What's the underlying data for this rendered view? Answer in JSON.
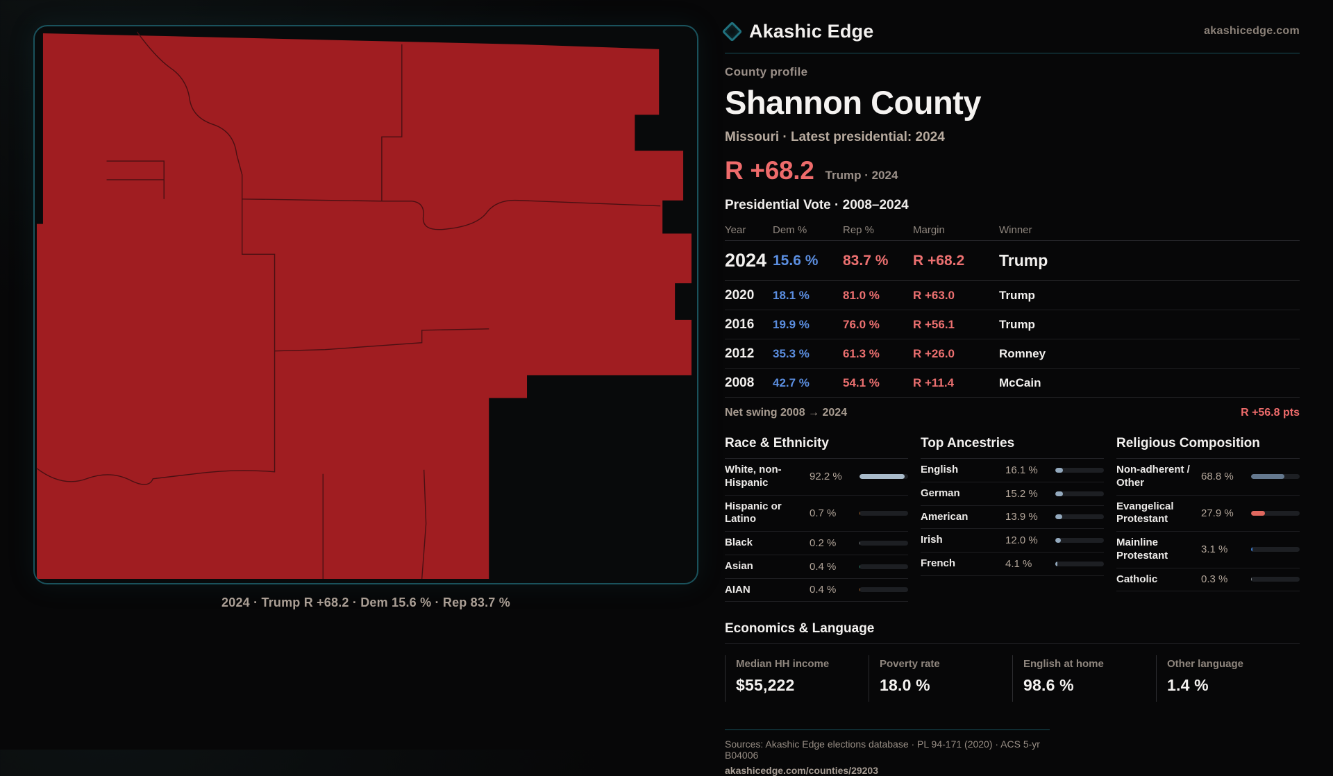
{
  "brand": {
    "name": "Akashic Edge",
    "domain": "akashicedge.com"
  },
  "profile": {
    "kicker": "County profile",
    "title": "Shannon County",
    "subtitle": "Missouri · Latest presidential: 2024",
    "headline_margin": "R +68.2",
    "headline_context": "Trump · 2024",
    "table_title": "Presidential Vote · 2008–2024"
  },
  "results_table": {
    "columns": [
      "Year",
      "Dem %",
      "Rep %",
      "Margin",
      "Winner"
    ],
    "rows": [
      {
        "year": "2024",
        "dem": "15.6 %",
        "rep": "83.7 %",
        "margin": "R +68.2",
        "winner": "Trump",
        "emphasis": true
      },
      {
        "year": "2020",
        "dem": "18.1 %",
        "rep": "81.0 %",
        "margin": "R +63.0",
        "winner": "Trump",
        "emphasis": false
      },
      {
        "year": "2016",
        "dem": "19.9 %",
        "rep": "76.0 %",
        "margin": "R +56.1",
        "winner": "Trump",
        "emphasis": false
      },
      {
        "year": "2012",
        "dem": "35.3 %",
        "rep": "61.3 %",
        "margin": "R +26.0",
        "winner": "Romney",
        "emphasis": false
      },
      {
        "year": "2008",
        "dem": "42.7 %",
        "rep": "54.1 %",
        "margin": "R +11.4",
        "winner": "McCain",
        "emphasis": false
      }
    ],
    "net_swing_label": "Net swing 2008 → 2024",
    "net_swing_value": "R +56.8 pts"
  },
  "demographics": {
    "race": {
      "title": "Race & Ethnicity",
      "rows": [
        {
          "label": "White, non-Hispanic",
          "value": "92.2 %",
          "pct": 92.2,
          "color": "#a9bbca"
        },
        {
          "label": "Hispanic or Latino",
          "value": "0.7 %",
          "pct": 0.7,
          "color": "#b06a30"
        },
        {
          "label": "Black",
          "value": "0.2 %",
          "pct": 0.2,
          "color": "#8a8f94"
        },
        {
          "label": "Asian",
          "value": "0.4 %",
          "pct": 0.4,
          "color": "#2f8f78"
        },
        {
          "label": "AIAN",
          "value": "0.4 %",
          "pct": 0.4,
          "color": "#b06a30"
        }
      ]
    },
    "ancestries": {
      "title": "Top Ancestries",
      "rows": [
        {
          "label": "English",
          "value": "16.1 %",
          "pct": 16.1,
          "color": "#93a9bd"
        },
        {
          "label": "German",
          "value": "15.2 %",
          "pct": 15.2,
          "color": "#93a9bd"
        },
        {
          "label": "American",
          "value": "13.9 %",
          "pct": 13.9,
          "color": "#93a9bd"
        },
        {
          "label": "Irish",
          "value": "12.0 %",
          "pct": 12.0,
          "color": "#93a9bd"
        },
        {
          "label": "French",
          "value": "4.1 %",
          "pct": 4.1,
          "color": "#93a9bd"
        }
      ]
    },
    "religion": {
      "title": "Religious Composition",
      "rows": [
        {
          "label": "Non-adherent / Other",
          "value": "68.8 %",
          "pct": 68.8,
          "color": "#64788e"
        },
        {
          "label": "Evangelical Protestant",
          "value": "27.9 %",
          "pct": 27.9,
          "color": "#e0685f"
        },
        {
          "label": "Mainline Protestant",
          "value": "3.1 %",
          "pct": 3.1,
          "color": "#3f7fd1"
        },
        {
          "label": "Catholic",
          "value": "0.3 %",
          "pct": 0.3,
          "color": "#8a8f94"
        }
      ]
    }
  },
  "economics": {
    "title": "Economics & Language",
    "stats": [
      {
        "label": "Median HH income",
        "value": "$55,222"
      },
      {
        "label": "Poverty rate",
        "value": "18.0 %"
      },
      {
        "label": "English at home",
        "value": "98.6 %"
      },
      {
        "label": "Other language",
        "value": "1.4 %"
      }
    ]
  },
  "map": {
    "caption": "2024 · Trump R +68.2 · Dem 15.6 % · Rep 83.7 %"
  },
  "footer": {
    "sources": "Sources: Akashic Edge elections database · PL 94-171 (2020) · ACS 5-yr B04006",
    "permalink": "akashicedge.com/counties/29203"
  },
  "colors": {
    "accent_red": "#ee6b6b",
    "dem_blue": "#5b8ee0",
    "map_fill": "#a01d21",
    "panel_teal": "#1a525c"
  },
  "chart_data": [
    {
      "type": "table",
      "title": "Presidential Vote · 2008–2024",
      "columns": [
        "Year",
        "Dem %",
        "Rep %",
        "Margin",
        "Winner"
      ],
      "rows": [
        [
          "2024",
          15.6,
          83.7,
          "R +68.2",
          "Trump"
        ],
        [
          "2020",
          18.1,
          81.0,
          "R +63.0",
          "Trump"
        ],
        [
          "2016",
          19.9,
          76.0,
          "R +56.1",
          "Trump"
        ],
        [
          "2012",
          35.3,
          61.3,
          "R +26.0",
          "Romney"
        ],
        [
          "2008",
          42.7,
          54.1,
          "R +11.4",
          "McCain"
        ]
      ],
      "annotations": [
        "Net swing 2008 → 2024: R +56.8 pts"
      ]
    },
    {
      "type": "bar",
      "title": "Race & Ethnicity",
      "categories": [
        "White, non-Hispanic",
        "Hispanic or Latino",
        "Black",
        "Asian",
        "AIAN"
      ],
      "values": [
        92.2,
        0.7,
        0.2,
        0.4,
        0.4
      ],
      "xlabel": "",
      "ylabel": "Percent",
      "ylim": [
        0,
        100
      ],
      "legend": false
    },
    {
      "type": "bar",
      "title": "Top Ancestries",
      "categories": [
        "English",
        "German",
        "American",
        "Irish",
        "French"
      ],
      "values": [
        16.1,
        15.2,
        13.9,
        12.0,
        4.1
      ],
      "xlabel": "",
      "ylabel": "Percent",
      "ylim": [
        0,
        100
      ],
      "legend": false
    },
    {
      "type": "bar",
      "title": "Religious Composition",
      "categories": [
        "Non-adherent / Other",
        "Evangelical Protestant",
        "Mainline Protestant",
        "Catholic"
      ],
      "values": [
        68.8,
        27.9,
        3.1,
        0.3
      ],
      "xlabel": "",
      "ylabel": "Percent",
      "ylim": [
        0,
        100
      ],
      "legend": false
    },
    {
      "type": "bar",
      "title": "Economics & Language",
      "categories": [
        "Median HH income ($)",
        "Poverty rate %",
        "English at home %",
        "Other language %"
      ],
      "values": [
        55222,
        18.0,
        98.6,
        1.4
      ]
    }
  ]
}
